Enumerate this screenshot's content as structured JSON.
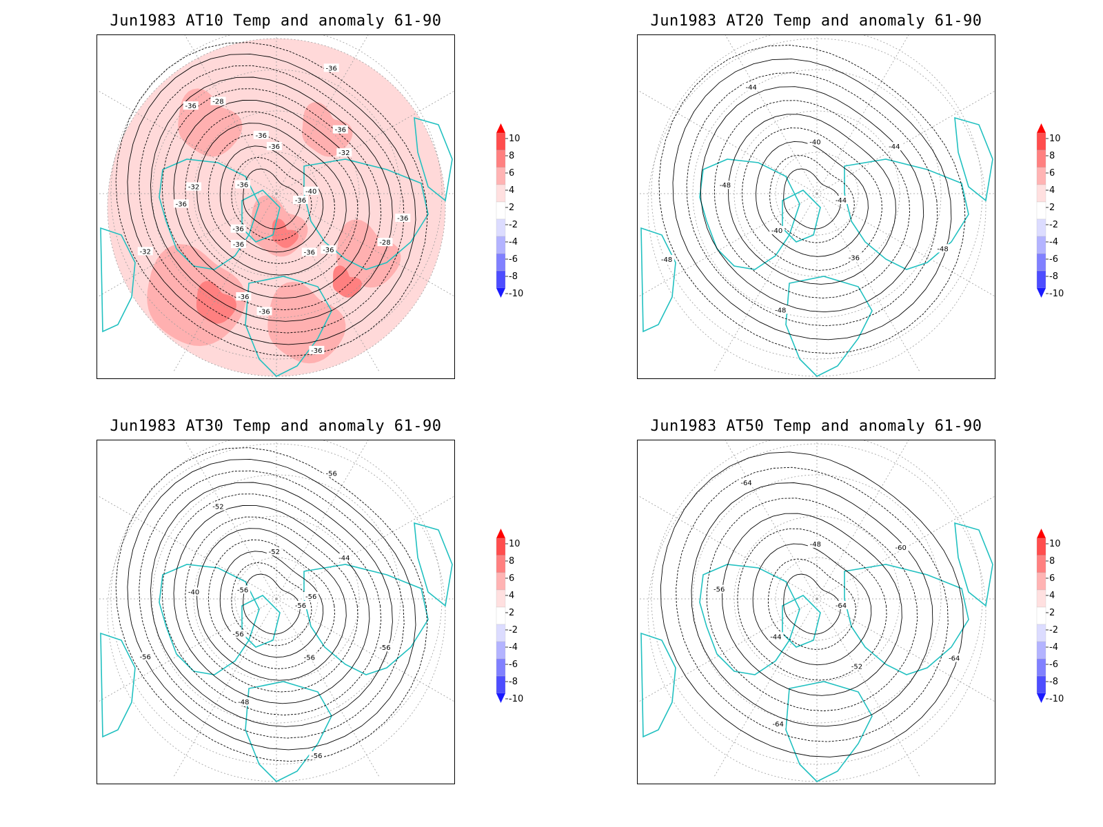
{
  "panels": [
    {
      "id": "at10",
      "title": "Jun1983 AT10 Temp and anomaly 61-90",
      "contour_labels": [
        "-36",
        "-36",
        "-36",
        "-36",
        "-32",
        "-32",
        "-36",
        "-28",
        "-28",
        "-32",
        "-36",
        "-36",
        "-36",
        "-40",
        "-36",
        "-36",
        "-36",
        "-36",
        "-36",
        "-36",
        "-36",
        "-36"
      ],
      "anomaly_shading": true
    },
    {
      "id": "at20",
      "title": "Jun1983 AT20 Temp and anomaly 61-90",
      "contour_labels": [
        "-44",
        "-40",
        "-40",
        "-36",
        "-48",
        "-44",
        "-48",
        "-44",
        "-48",
        "-48"
      ],
      "anomaly_shading": false
    },
    {
      "id": "at30",
      "title": "Jun1983 AT30 Temp and anomaly 61-90",
      "contour_labels": [
        "-56",
        "-56",
        "-52",
        "-56",
        "-40",
        "-44",
        "-48",
        "-52",
        "-56",
        "-56",
        "-56",
        "-56",
        "-56",
        "-56"
      ],
      "anomaly_shading": false
    },
    {
      "id": "at50",
      "title": "Jun1983 AT50 Temp and anomaly 61-90",
      "contour_labels": [
        "-64",
        "-44",
        "-48",
        "-52",
        "-56",
        "-60",
        "-64",
        "-64",
        "-64"
      ],
      "anomaly_shading": false
    }
  ],
  "colorbar": {
    "labels": [
      "10",
      "8",
      "6",
      "4",
      "2",
      "-2",
      "-4",
      "-6",
      "-8",
      "-10"
    ],
    "colors": [
      "#ff0000",
      "#ff4d4d",
      "#ff8080",
      "#ffb3b3",
      "#ffe0e0",
      "#ffffff",
      "#dcdcff",
      "#b3b3ff",
      "#8080ff",
      "#4d4dff",
      "#1a1aff"
    ]
  },
  "colors": {
    "coastline": "#20c0c0",
    "contour": "#000000",
    "grid": "#999999",
    "anomaly_light": "#ffd9d9",
    "anomaly_mid": "#ffb0b0",
    "anomaly_strong": "#ff8080"
  }
}
